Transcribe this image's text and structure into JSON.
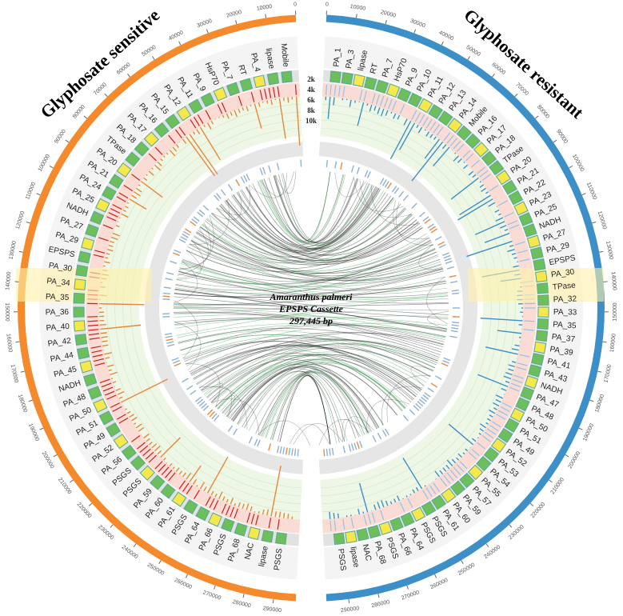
{
  "title_left": "Glyphosate sensitive",
  "title_right": "Glyphosate resistant",
  "center": [
    "Amaranthus palmeri",
    "EPSPS Cassette",
    "297,445 bp"
  ],
  "ring_labels": [
    "2k",
    "4k",
    "6k",
    "8k",
    "10k"
  ],
  "axis": {
    "xlim": [
      0,
      297445
    ],
    "xticks": [
      0,
      10000,
      20000,
      30000,
      40000,
      50000,
      60000,
      70000,
      80000,
      90000,
      100000,
      110000,
      120000,
      130000,
      140000,
      150000,
      160000,
      170000,
      180000,
      190000,
      200000,
      210000,
      220000,
      230000,
      240000,
      250000,
      260000,
      270000,
      280000,
      290000
    ]
  },
  "sensitive": {
    "genes": [
      "Mobile",
      "lipase",
      "PA_4",
      "RT",
      "PA_7",
      "HsP70",
      "PA_9",
      "PA_11",
      "PA_12",
      "PA_15",
      "PA_16",
      "PA_17",
      "PA_18",
      "TPase",
      "PA_20",
      "PA_21",
      "PA_24",
      "PA_25",
      "NADH",
      "PA_27",
      "PA_29",
      "EPSPS",
      "PA_30",
      "PA_34",
      "PA_35",
      "PA_36",
      "PA_40",
      "PA_42",
      "PA_44",
      "PA_45",
      "NADH",
      "PA_48",
      "PA_50",
      "PA_51",
      "PA_49",
      "PA_52",
      "PA_56",
      "PSGS",
      "PSGS",
      "PA_59",
      "PA_60",
      "PA_61",
      "PSGS",
      "PA_64",
      "PA_66",
      "PSGS",
      "PA_68",
      "NAC",
      "lipase",
      "PSGS"
    ]
  },
  "resistant": {
    "genes": [
      "PA_1",
      "PA_3",
      "lipase",
      "RT",
      "PA_7",
      "HsP70",
      "PA_9",
      "PA_10",
      "PA_11",
      "PA_12",
      "PA_13",
      "PA_14",
      "Mobile",
      "PA_16",
      "PA_17",
      "PA_18",
      "TPase",
      "PA_20",
      "PA_21",
      "PA_22",
      "PA_23",
      "PA_25",
      "NADH",
      "PA_27",
      "PA_29",
      "EPSPS",
      "PA_30",
      "TPase",
      "PA_32",
      "PA_33",
      "PA_35",
      "PA_37",
      "PA_39",
      "PA_41",
      "PA_43",
      "NADH",
      "PA_47",
      "PA_48",
      "PA_50",
      "PA_51",
      "PA_49",
      "PA_52",
      "PA_53",
      "PA_54",
      "PA_55",
      "PA_57",
      "PA_59",
      "PA_60",
      "PA_61",
      "PSGS",
      "PSGS",
      "PA_64",
      "PA_66",
      "PSGS",
      "PA_68",
      "NAC",
      "lipase",
      "PSGS"
    ]
  }
}
